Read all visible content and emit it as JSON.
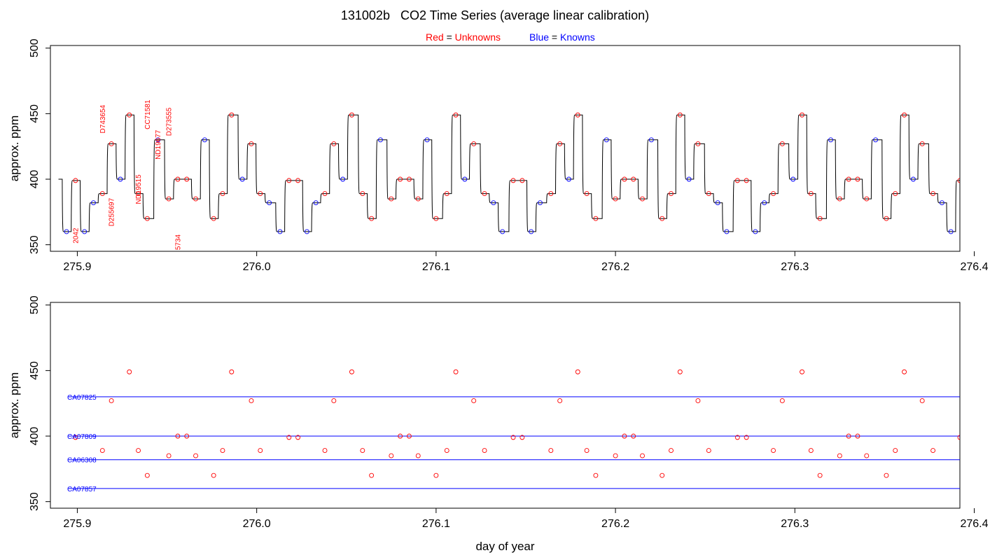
{
  "page": {
    "title_id": "131002b",
    "title_text": "CO2 Time Series (average linear calibration)",
    "legend_red_color": "Red",
    "legend_red_eq": "=",
    "legend_red_name": "Unknowns",
    "legend_blue_color": "Blue",
    "legend_blue_eq": "=",
    "legend_blue_name": "Knowns"
  },
  "colors": {
    "unknown": "#ff0000",
    "known": "#0000ff",
    "trace": "#000000"
  },
  "chart_data": [
    {
      "type": "line",
      "title": "131002b   CO2 Time Series (average linear calibration)",
      "ylabel": "approx. ppm",
      "xlim": [
        275.885,
        276.392
      ],
      "ylim": [
        345,
        502
      ],
      "xticks": [
        275.9,
        276.0,
        276.1,
        276.2,
        276.3,
        276.4
      ],
      "xtick_labels": [
        "275.9",
        "276.0",
        "276.1",
        "276.2",
        "276.3",
        "276.4"
      ],
      "yticks": [
        350,
        400,
        450,
        500
      ],
      "ytick_labels": [
        "350",
        "400",
        "450",
        "500"
      ],
      "series": [
        {
          "name": "Unknowns",
          "x": [
            275.899,
            275.914,
            275.919,
            275.929,
            275.934,
            275.939,
            275.951,
            275.956,
            275.961,
            275.966,
            275.976,
            275.981,
            275.986,
            275.997,
            276.002,
            276.018,
            276.023,
            276.038,
            276.043,
            276.053,
            276.059,
            276.064,
            276.075,
            276.08,
            276.085,
            276.09,
            276.1,
            276.106,
            276.111,
            276.121,
            276.127,
            276.143,
            276.148,
            276.164,
            276.169,
            276.179,
            276.184,
            276.189,
            276.2,
            276.205,
            276.21,
            276.215,
            276.226,
            276.231,
            276.236,
            276.246,
            276.252,
            276.268,
            276.273,
            276.288,
            276.293,
            276.304,
            276.309,
            276.314,
            276.325,
            276.33,
            276.335,
            276.34,
            276.351,
            276.356,
            276.361,
            276.371,
            276.377,
            276.392
          ],
          "y": [
            399,
            389,
            427,
            449,
            389,
            370,
            385,
            400,
            400,
            385,
            370,
            389,
            449,
            427,
            389,
            399,
            399,
            389,
            427,
            449,
            389,
            370,
            385,
            400,
            400,
            385,
            370,
            389,
            449,
            427,
            389,
            399,
            399,
            389,
            427,
            449,
            389,
            370,
            385,
            400,
            400,
            385,
            370,
            389,
            449,
            427,
            389,
            399,
            399,
            389,
            427,
            449,
            389,
            370,
            385,
            400,
            400,
            385,
            370,
            389,
            449,
            427,
            389,
            399
          ]
        },
        {
          "name": "Knowns",
          "x": [
            275.894,
            275.904,
            275.909,
            275.924,
            275.945,
            275.971,
            275.992,
            276.007,
            276.013,
            276.028,
            276.033,
            276.048,
            276.069,
            276.095,
            276.116,
            276.132,
            276.137,
            276.153,
            276.158,
            276.174,
            276.195,
            276.22,
            276.241,
            276.257,
            276.262,
            276.278,
            276.283,
            276.299,
            276.32,
            276.345,
            276.366,
            276.382,
            276.387
          ],
          "y": [
            360,
            360,
            382,
            400,
            430,
            430,
            400,
            382,
            360,
            360,
            382,
            400,
            430,
            430,
            400,
            382,
            360,
            360,
            382,
            400,
            430,
            430,
            400,
            382,
            360,
            360,
            382,
            400,
            430,
            430,
            400,
            382,
            360
          ]
        }
      ],
      "annotations": [
        {
          "text": "2042",
          "x": 275.899,
          "y": 351
        },
        {
          "text": "D743654",
          "x": 275.914,
          "y": 435
        },
        {
          "text": "D255697",
          "x": 275.919,
          "y": 364
        },
        {
          "text": "ND19515",
          "x": 275.934,
          "y": 381
        },
        {
          "text": "CC71581",
          "x": 275.939,
          "y": 438
        },
        {
          "text": "ND19677",
          "x": 275.945,
          "y": 415
        },
        {
          "text": "D273555",
          "x": 275.951,
          "y": 433
        },
        {
          "text": "5734",
          "x": 275.956,
          "y": 346
        }
      ]
    },
    {
      "type": "scatter",
      "xlabel": "day of year",
      "ylabel": "approx. ppm",
      "xlim": [
        275.885,
        276.392
      ],
      "ylim": [
        345,
        502
      ],
      "xticks": [
        275.9,
        276.0,
        276.1,
        276.2,
        276.3,
        276.4
      ],
      "xtick_labels": [
        "275.9",
        "276.0",
        "276.1",
        "276.2",
        "276.3",
        "276.4"
      ],
      "yticks": [
        350,
        400,
        450,
        500
      ],
      "ytick_labels": [
        "350",
        "400",
        "450",
        "500"
      ],
      "series": [
        {
          "name": "Unknowns",
          "x": [
            275.899,
            275.914,
            275.919,
            275.929,
            275.934,
            275.939,
            275.951,
            275.956,
            275.961,
            275.966,
            275.976,
            275.981,
            275.986,
            275.997,
            276.002,
            276.018,
            276.023,
            276.038,
            276.043,
            276.053,
            276.059,
            276.064,
            276.075,
            276.08,
            276.085,
            276.09,
            276.1,
            276.106,
            276.111,
            276.121,
            276.127,
            276.143,
            276.148,
            276.164,
            276.169,
            276.179,
            276.184,
            276.189,
            276.2,
            276.205,
            276.21,
            276.215,
            276.226,
            276.231,
            276.236,
            276.246,
            276.252,
            276.268,
            276.273,
            276.288,
            276.293,
            276.304,
            276.309,
            276.314,
            276.325,
            276.33,
            276.335,
            276.34,
            276.351,
            276.356,
            276.361,
            276.371,
            276.377,
            276.392
          ],
          "y": [
            399,
            389,
            427,
            449,
            389,
            370,
            385,
            400,
            400,
            385,
            370,
            389,
            449,
            427,
            389,
            399,
            399,
            389,
            427,
            449,
            389,
            370,
            385,
            400,
            400,
            385,
            370,
            389,
            449,
            427,
            389,
            399,
            399,
            389,
            427,
            449,
            389,
            370,
            385,
            400,
            400,
            385,
            370,
            389,
            449,
            427,
            389,
            399,
            399,
            389,
            427,
            449,
            389,
            370,
            385,
            400,
            400,
            385,
            370,
            389,
            449,
            427,
            389,
            399
          ]
        }
      ],
      "reference_lines": [
        {
          "name": "CA07825",
          "value": 430,
          "x": [
            275.895,
            276.392
          ]
        },
        {
          "name": "CA07809",
          "value": 400,
          "x": [
            275.895,
            276.392
          ]
        },
        {
          "name": "CA06308",
          "value": 382,
          "x": [
            275.895,
            276.392
          ]
        },
        {
          "name": "CA07857",
          "value": 360,
          "x": [
            275.895,
            276.392
          ]
        }
      ]
    }
  ]
}
